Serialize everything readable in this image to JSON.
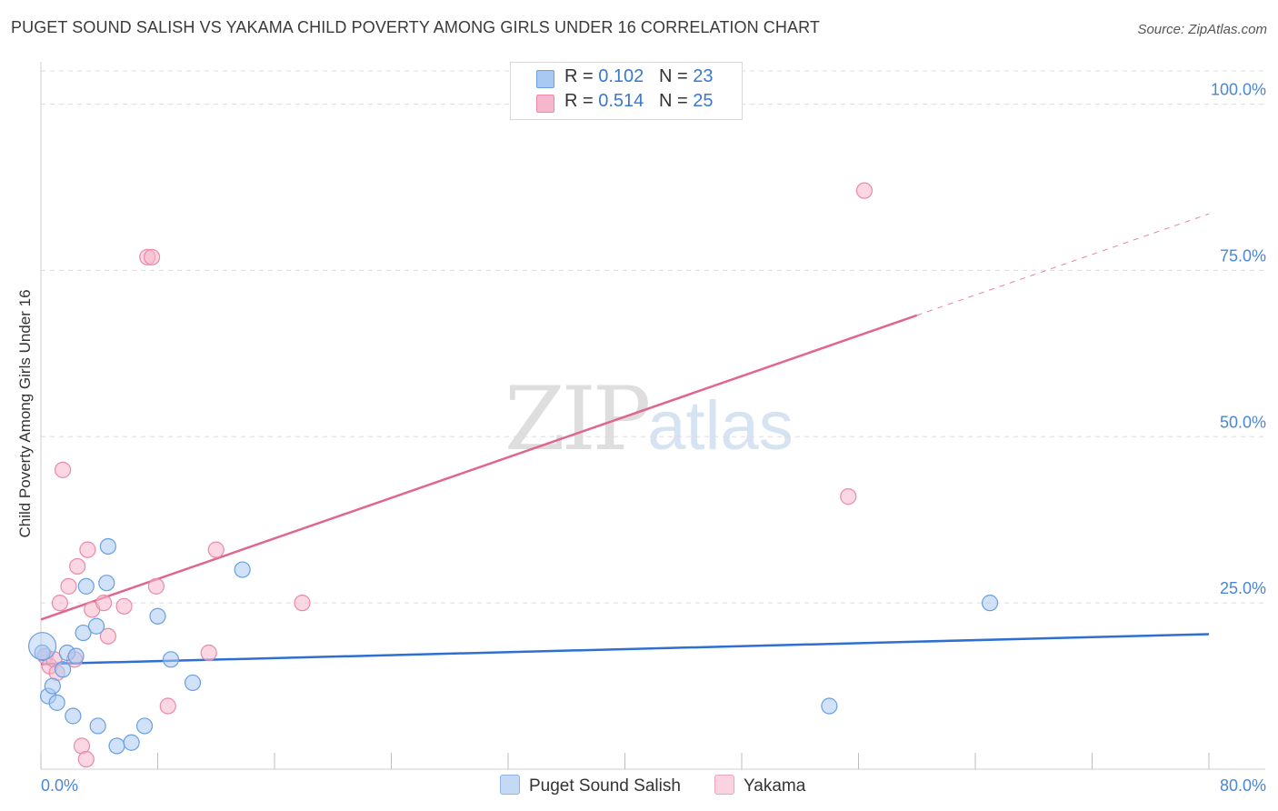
{
  "header": {
    "title": "PUGET SOUND SALISH VS YAKAMA CHILD POVERTY AMONG GIRLS UNDER 16 CORRELATION CHART",
    "source": "Source: ZipAtlas.com"
  },
  "watermark": {
    "zip": "ZIP",
    "atlas": "atlas"
  },
  "legend": {
    "rows": [
      {
        "r_label": "R = ",
        "r_value": "0.102",
        "n_label": "N = ",
        "n_value": "23",
        "color": "#a9c8f2"
      },
      {
        "r_label": "R = ",
        "r_value": "0.514",
        "n_label": "N = ",
        "n_value": "25",
        "color": "#f6b6cb"
      }
    ]
  },
  "chart_data": {
    "type": "scatter",
    "title": "PUGET SOUND SALISH VS YAKAMA CHILD POVERTY AMONG GIRLS UNDER 16 CORRELATION CHART",
    "xlabel": "",
    "ylabel": "Child Poverty Among Girls Under 16",
    "xlim": [
      0,
      80
    ],
    "ylim": [
      0,
      105
    ],
    "x_tick_labels": [
      "0.0%",
      "80.0%"
    ],
    "y_ticks": [
      25,
      50,
      75,
      100
    ],
    "y_tick_labels": [
      "25.0%",
      "50.0%",
      "75.0%",
      "100.0%"
    ],
    "grid": true,
    "series": [
      {
        "name": "Puget Sound Salish",
        "color": "#a9c8f2",
        "stroke": "#6a9fe0",
        "line_color": "#2f6fd0",
        "points": [
          [
            0.1,
            17.5
          ],
          [
            0.5,
            11.0
          ],
          [
            0.8,
            12.5
          ],
          [
            1.1,
            10.0
          ],
          [
            1.5,
            15.0
          ],
          [
            1.8,
            17.5
          ],
          [
            2.2,
            8.0
          ],
          [
            2.4,
            17.0
          ],
          [
            2.9,
            20.5
          ],
          [
            3.1,
            27.5
          ],
          [
            3.8,
            21.5
          ],
          [
            3.9,
            6.5
          ],
          [
            4.6,
            33.5
          ],
          [
            4.5,
            28.0
          ],
          [
            5.2,
            3.5
          ],
          [
            6.2,
            4.0
          ],
          [
            7.1,
            6.5
          ],
          [
            8.0,
            23.0
          ],
          [
            8.9,
            16.5
          ],
          [
            10.4,
            13.0
          ],
          [
            13.8,
            30.0
          ],
          [
            54.0,
            9.5
          ],
          [
            65.0,
            25.0
          ]
        ],
        "trend": {
          "x": [
            0,
            80
          ],
          "y": [
            15.8,
            20.3
          ],
          "dashed_from": null
        }
      },
      {
        "name": "Yakama",
        "color": "#f6b6cb",
        "stroke": "#e98aa7",
        "line_color": "#e0668f",
        "points": [
          [
            0.3,
            17.0
          ],
          [
            0.6,
            15.5
          ],
          [
            0.9,
            16.5
          ],
          [
            1.1,
            14.5
          ],
          [
            1.3,
            25.0
          ],
          [
            1.5,
            45.0
          ],
          [
            1.9,
            27.5
          ],
          [
            2.3,
            16.5
          ],
          [
            2.5,
            30.5
          ],
          [
            2.8,
            3.5
          ],
          [
            3.1,
            1.5
          ],
          [
            3.2,
            33.0
          ],
          [
            3.5,
            24.0
          ],
          [
            4.3,
            25.0
          ],
          [
            4.6,
            20.0
          ],
          [
            5.7,
            24.5
          ],
          [
            7.3,
            77.0
          ],
          [
            7.6,
            77.0
          ],
          [
            7.9,
            27.5
          ],
          [
            8.7,
            9.5
          ],
          [
            11.5,
            17.5
          ],
          [
            12.0,
            33.0
          ],
          [
            17.9,
            25.0
          ],
          [
            55.3,
            41.0
          ],
          [
            56.4,
            87.0
          ]
        ],
        "trend": {
          "x": [
            0,
            80
          ],
          "y": [
            22.5,
            83.5
          ],
          "dashed_from": 60
        }
      }
    ]
  },
  "bottom_legend": {
    "items": [
      {
        "label": "Puget Sound Salish",
        "color": "#c4d9f6",
        "border": "#8fb3e6"
      },
      {
        "label": "Yakama",
        "color": "#fbd3e0",
        "border": "#eea6bf"
      }
    ]
  },
  "y_axis_label": "Child Poverty Among Girls Under 16"
}
